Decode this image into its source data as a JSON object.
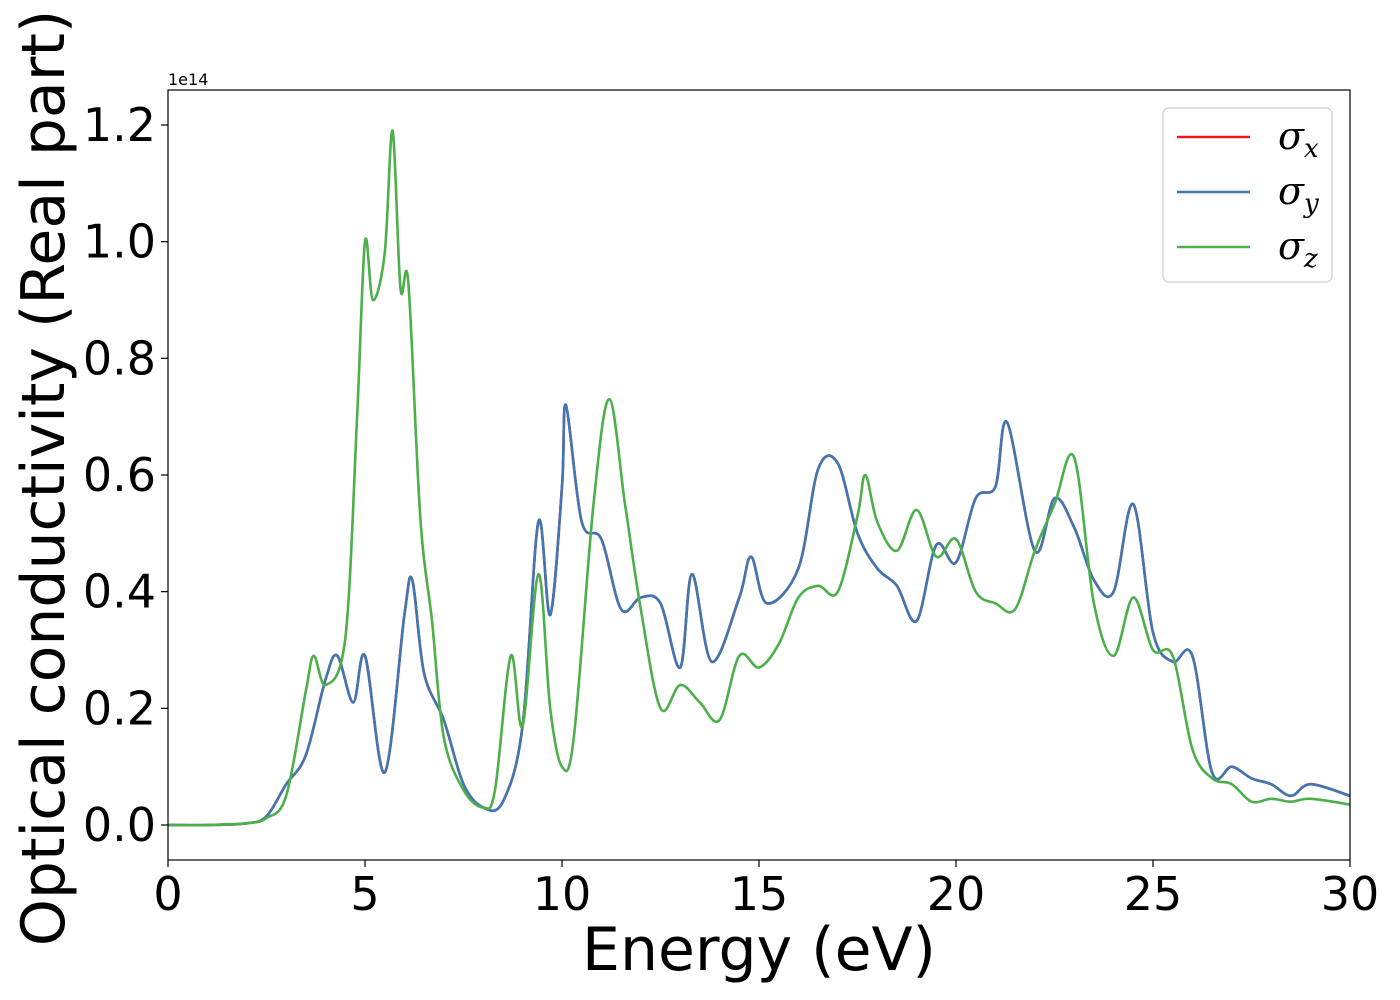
{
  "chart_data": {
    "type": "line",
    "xlabel": "Energy (eV)",
    "ylabel": "Optical conductivity (Real part)",
    "y_offset_text": "1e14",
    "xlim": [
      0,
      30
    ],
    "ylim": [
      -0.06,
      1.26
    ],
    "y_scale_factor": 100000000000000.0,
    "x_ticks": [
      0,
      5,
      10,
      15,
      20,
      25,
      30
    ],
    "x_tick_labels": [
      "0",
      "5",
      "10",
      "15",
      "20",
      "25",
      "30"
    ],
    "y_ticks": [
      0.0,
      0.2,
      0.4,
      0.6,
      0.8,
      1.0,
      1.2
    ],
    "y_tick_labels": [
      "0.0",
      "0.2",
      "0.4",
      "0.6",
      "0.8",
      "1.0",
      "1.2"
    ],
    "grid": false,
    "legend_position": "top-right",
    "series": [
      {
        "name": "σx",
        "legend": {
          "base": "σ",
          "sub": "x"
        },
        "color": "#e41a1c",
        "hidden_under": "σy",
        "x": [
          0,
          1,
          2,
          2.5,
          3,
          3.5,
          4,
          4.3,
          4.7,
          5,
          5.5,
          6,
          6.2,
          6.5,
          7,
          7.5,
          8,
          8.5,
          9,
          9.4,
          9.7,
          10,
          10.1,
          10.5,
          11,
          11.5,
          12,
          12.5,
          13,
          13.3,
          13.8,
          14.5,
          14.8,
          15.2,
          16,
          16.5,
          17,
          17.5,
          18,
          18.5,
          19,
          19.5,
          20,
          20.5,
          21,
          21.3,
          22,
          22.5,
          23,
          23.5,
          24,
          24.5,
          25,
          25.5,
          26,
          26.5,
          27,
          27.5,
          28,
          28.5,
          29,
          30
        ],
        "y": [
          0.0,
          0.0,
          0.003,
          0.015,
          0.07,
          0.12,
          0.25,
          0.29,
          0.21,
          0.29,
          0.09,
          0.36,
          0.42,
          0.26,
          0.18,
          0.07,
          0.03,
          0.04,
          0.17,
          0.52,
          0.36,
          0.58,
          0.72,
          0.52,
          0.49,
          0.37,
          0.39,
          0.38,
          0.27,
          0.43,
          0.28,
          0.39,
          0.46,
          0.38,
          0.44,
          0.61,
          0.62,
          0.5,
          0.44,
          0.41,
          0.35,
          0.48,
          0.45,
          0.56,
          0.58,
          0.69,
          0.47,
          0.56,
          0.51,
          0.42,
          0.4,
          0.55,
          0.33,
          0.28,
          0.29,
          0.09,
          0.1,
          0.08,
          0.07,
          0.05,
          0.07,
          0.05
        ]
      },
      {
        "name": "σy",
        "legend": {
          "base": "σ",
          "sub": "y"
        },
        "color": "#3f77b5",
        "x": [
          0,
          1,
          2,
          2.5,
          3,
          3.5,
          4,
          4.3,
          4.7,
          5,
          5.5,
          6,
          6.2,
          6.5,
          7,
          7.5,
          8,
          8.5,
          9,
          9.4,
          9.7,
          10,
          10.1,
          10.5,
          11,
          11.5,
          12,
          12.5,
          13,
          13.3,
          13.8,
          14.5,
          14.8,
          15.2,
          16,
          16.5,
          17,
          17.5,
          18,
          18.5,
          19,
          19.5,
          20,
          20.5,
          21,
          21.3,
          22,
          22.5,
          23,
          23.5,
          24,
          24.5,
          25,
          25.5,
          26,
          26.5,
          27,
          27.5,
          28,
          28.5,
          29,
          30
        ],
        "y": [
          0.0,
          0.0,
          0.003,
          0.015,
          0.07,
          0.12,
          0.25,
          0.29,
          0.21,
          0.29,
          0.09,
          0.36,
          0.42,
          0.26,
          0.18,
          0.07,
          0.03,
          0.04,
          0.17,
          0.52,
          0.36,
          0.58,
          0.72,
          0.52,
          0.49,
          0.37,
          0.39,
          0.38,
          0.27,
          0.43,
          0.28,
          0.39,
          0.46,
          0.38,
          0.44,
          0.61,
          0.62,
          0.5,
          0.44,
          0.41,
          0.35,
          0.48,
          0.45,
          0.56,
          0.58,
          0.69,
          0.47,
          0.56,
          0.51,
          0.42,
          0.4,
          0.55,
          0.33,
          0.28,
          0.29,
          0.09,
          0.1,
          0.08,
          0.07,
          0.05,
          0.07,
          0.05
        ]
      },
      {
        "name": "σz",
        "legend": {
          "base": "σ",
          "sub": "z"
        },
        "color": "#4daf4a",
        "x": [
          0,
          1,
          2,
          2.5,
          3,
          3.5,
          3.7,
          4,
          4.5,
          4.8,
          5,
          5.2,
          5.5,
          5.7,
          5.9,
          6.1,
          6.4,
          6.7,
          7,
          7.5,
          8,
          8.3,
          8.7,
          9,
          9.4,
          9.7,
          10,
          10.3,
          10.8,
          11.2,
          11.6,
          12,
          12.5,
          13,
          13.5,
          14,
          14.5,
          15,
          15.5,
          16,
          16.5,
          17,
          17.5,
          17.7,
          18,
          18.5,
          19,
          19.5,
          20,
          20.5,
          21,
          21.5,
          22,
          22.5,
          23,
          23.5,
          24,
          24.5,
          25,
          25.5,
          26,
          26.5,
          27,
          27.5,
          28,
          28.5,
          29,
          30
        ],
        "y": [
          0.0,
          0.0,
          0.003,
          0.012,
          0.05,
          0.23,
          0.29,
          0.24,
          0.32,
          0.7,
          1.0,
          0.9,
          0.98,
          1.19,
          0.92,
          0.93,
          0.53,
          0.35,
          0.15,
          0.06,
          0.03,
          0.06,
          0.29,
          0.17,
          0.43,
          0.2,
          0.1,
          0.15,
          0.55,
          0.73,
          0.55,
          0.37,
          0.2,
          0.24,
          0.21,
          0.18,
          0.29,
          0.27,
          0.31,
          0.39,
          0.41,
          0.4,
          0.53,
          0.6,
          0.52,
          0.47,
          0.54,
          0.46,
          0.49,
          0.4,
          0.38,
          0.37,
          0.47,
          0.55,
          0.63,
          0.38,
          0.29,
          0.39,
          0.3,
          0.29,
          0.13,
          0.08,
          0.07,
          0.04,
          0.045,
          0.04,
          0.045,
          0.035
        ]
      }
    ]
  }
}
